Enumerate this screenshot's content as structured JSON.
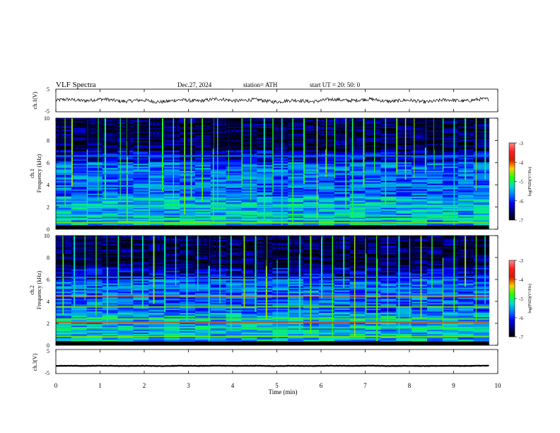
{
  "header": {
    "title": "VLF  Spectra",
    "date": "Dec.27, 2024",
    "station": "station= ATH",
    "start": "start  UT  =    20: 50: 0"
  },
  "colorbar": {
    "label": "log(PSD)(V²/Hz)",
    "ticks": [
      "-3",
      "-4",
      "-5",
      "-6",
      "-7"
    ],
    "stops": [
      "#ff8c8c",
      "#ff1e1e",
      "#d21e00",
      "#ffcc00",
      "#22ff00",
      "#00e0c0",
      "#0080ff",
      "#0000ff",
      "#00006e",
      "#000000"
    ]
  },
  "chart_data": [
    {
      "id": "ch1-waveform",
      "type": "line",
      "xlabel": "",
      "ylabel": "ch.1(V)",
      "xlim": [
        0,
        10
      ],
      "ylim": [
        -5,
        5
      ],
      "yticks": [
        "5",
        "-5"
      ],
      "trace": {
        "x_start": 0,
        "x_end": 9.8,
        "mean": 0.0,
        "amplitude_range": [
          -1.5,
          1.3
        ],
        "color": "#000000"
      }
    },
    {
      "id": "ch1-spectrogram",
      "type": "heatmap",
      "ylabel": "ch.1\nFrequency  (kHz)",
      "xlim": [
        0,
        10
      ],
      "ylim": [
        0,
        10
      ],
      "yticks": [
        "0",
        "2",
        "4",
        "6",
        "8",
        "10"
      ],
      "data_x_end": 9.8,
      "value_range": [
        -7,
        -3
      ],
      "bands_khz": [
        {
          "f": 0.1,
          "level": -3.2
        },
        {
          "f": 0.6,
          "level": -4.6
        },
        {
          "f": 0.9,
          "level": -4.9
        },
        {
          "f": 1.2,
          "level": -5.0
        },
        {
          "f": 2.0,
          "level": -5.2
        },
        {
          "f": 2.15,
          "level": -5.0
        },
        {
          "f": 3.9,
          "level": -5.4
        },
        {
          "f": 5.0,
          "level": -5.6
        },
        {
          "f": 6.6,
          "level": -5.6
        }
      ],
      "sferic_times_min": [
        0.2,
        0.35,
        0.7,
        0.95,
        1.1,
        1.45,
        1.6,
        1.85,
        2.1,
        2.4,
        2.65,
        2.9,
        3.05,
        3.3,
        3.55,
        3.65,
        3.9,
        4.2,
        4.4,
        4.7,
        4.9,
        5.1,
        5.35,
        5.6,
        5.9,
        6.1,
        6.3,
        6.55,
        6.7,
        6.95,
        7.2,
        7.45,
        7.7,
        7.9,
        8.1,
        8.35,
        8.55,
        8.75,
        9.0,
        9.25,
        9.5,
        9.7
      ]
    },
    {
      "id": "ch2-spectrogram",
      "type": "heatmap",
      "ylabel": "ch.2\nFrequency  (kHz)",
      "xlim": [
        0,
        10
      ],
      "ylim": [
        0,
        10
      ],
      "yticks": [
        "0",
        "2",
        "4",
        "6",
        "8",
        "10"
      ],
      "data_x_end": 9.8,
      "value_range": [
        -7,
        -3
      ],
      "bands_khz": [
        {
          "f": 0.1,
          "level": -3.2
        },
        {
          "f": 0.8,
          "level": -4.6
        },
        {
          "f": 1.6,
          "level": -4.8
        },
        {
          "f": 2.1,
          "level": -4.0
        },
        {
          "f": 2.4,
          "level": -4.7
        },
        {
          "f": 3.5,
          "level": -4.6
        },
        {
          "f": 4.5,
          "level": -4.2
        },
        {
          "f": 5.2,
          "level": -5.4
        },
        {
          "f": 6.2,
          "level": -5.6
        }
      ],
      "sferic_times_min": [
        0.15,
        0.4,
        0.65,
        0.9,
        1.15,
        1.4,
        1.7,
        1.95,
        2.2,
        2.45,
        2.7,
        2.95,
        3.2,
        3.45,
        3.7,
        3.95,
        4.25,
        4.5,
        4.75,
        5.0,
        5.25,
        5.5,
        5.75,
        6.0,
        6.25,
        6.5,
        6.75,
        7.0,
        7.25,
        7.5,
        7.75,
        8.0,
        8.25,
        8.5,
        8.75,
        9.0,
        9.25,
        9.5,
        9.7
      ]
    },
    {
      "id": "ch3-waveform",
      "type": "line",
      "xlabel": "Time  (min)",
      "ylabel": "ch.3(V)",
      "xlim": [
        0,
        10
      ],
      "ylim": [
        -5,
        5
      ],
      "xticks": [
        "0",
        "1",
        "2",
        "3",
        "4",
        "5",
        "6",
        "7",
        "8",
        "9",
        "10"
      ],
      "yticks": [
        "5",
        "-5"
      ],
      "trace": {
        "x_start": 0,
        "x_end": 9.8,
        "mean": -1.8,
        "amplitude_range": [
          -0.15,
          0.15
        ],
        "color": "#000000"
      }
    }
  ]
}
